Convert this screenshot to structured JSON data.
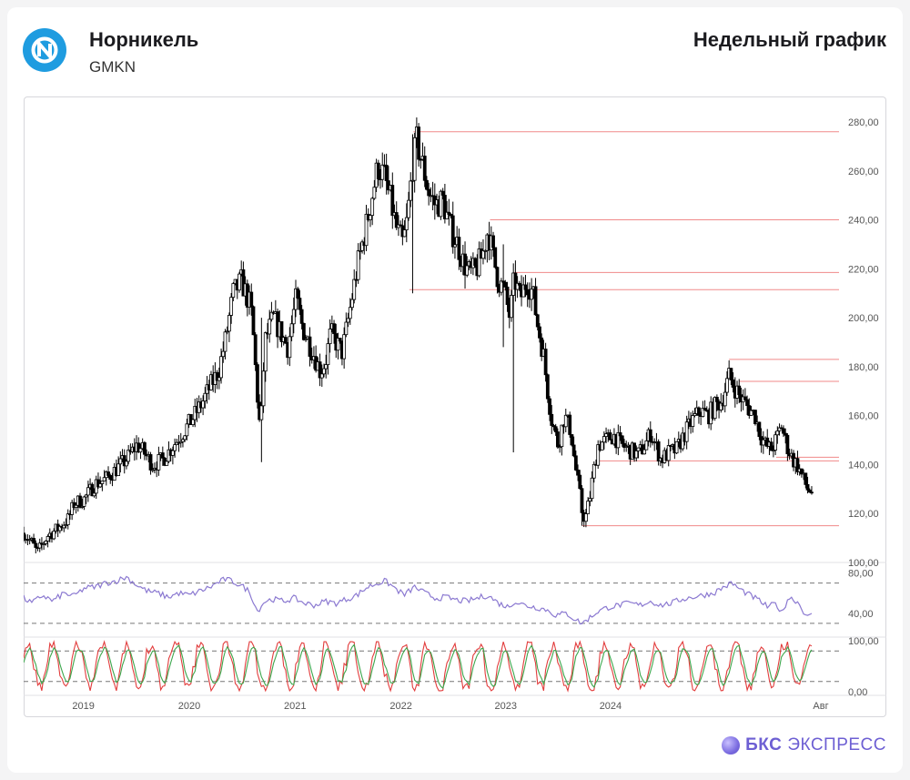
{
  "header": {
    "company": "Норникель",
    "ticker": "GMKN",
    "period": "Недельный график",
    "logo_icon": "nornickel-logo-icon",
    "logo_color": "#1f9ce0"
  },
  "brand": {
    "name_bold": "БКС",
    "name_rest": "ЭКСПРЕСС",
    "color": "#6d5fd3"
  },
  "chart_data": [
    {
      "type": "candlestick",
      "x_labels": [
        "2019",
        "2020",
        "2021",
        "2022",
        "2023",
        "2024",
        "Авг"
      ],
      "ylim": [
        100,
        280
      ],
      "y_ticks": [
        "100,00",
        "120,00",
        "140,00",
        "160,00",
        "180,00",
        "200,00",
        "220,00",
        "240,00",
        "260,00",
        "280,00"
      ],
      "anchors": [
        [
          2018.62,
          112
        ],
        [
          2018.7,
          108
        ],
        [
          2018.75,
          104
        ],
        [
          2018.85,
          111
        ],
        [
          2018.95,
          114
        ],
        [
          2019.05,
          118
        ],
        [
          2019.1,
          124
        ],
        [
          2019.2,
          126
        ],
        [
          2019.3,
          132
        ],
        [
          2019.4,
          134
        ],
        [
          2019.5,
          138
        ],
        [
          2019.6,
          142
        ],
        [
          2019.7,
          148
        ],
        [
          2019.75,
          146
        ],
        [
          2019.85,
          140
        ],
        [
          2019.95,
          142
        ],
        [
          2020.05,
          148
        ],
        [
          2020.12,
          152
        ],
        [
          2020.22,
          158
        ],
        [
          2020.32,
          165
        ],
        [
          2020.4,
          172
        ],
        [
          2020.48,
          178
        ],
        [
          2020.55,
          192
        ],
        [
          2020.62,
          210
        ],
        [
          2020.7,
          215
        ],
        [
          2020.78,
          205
        ],
        [
          2020.8,
          200
        ],
        [
          2020.85,
          168
        ],
        [
          2020.88,
          152
        ],
        [
          2020.92,
          190
        ],
        [
          2021.0,
          200
        ],
        [
          2021.06,
          195
        ],
        [
          2021.14,
          188
        ],
        [
          2021.22,
          208
        ],
        [
          2021.28,
          196
        ],
        [
          2021.34,
          190
        ],
        [
          2021.4,
          184
        ],
        [
          2021.45,
          178
        ],
        [
          2021.5,
          182
        ],
        [
          2021.55,
          194
        ],
        [
          2021.6,
          190
        ],
        [
          2021.66,
          186
        ],
        [
          2021.72,
          200
        ],
        [
          2021.8,
          220
        ],
        [
          2021.9,
          240
        ],
        [
          2022.0,
          262
        ],
        [
          2022.06,
          258
        ],
        [
          2022.12,
          248
        ],
        [
          2022.18,
          236
        ],
        [
          2022.24,
          230
        ],
        [
          2022.28,
          240
        ],
        [
          2022.33,
          262
        ],
        [
          2022.37,
          272
        ],
        [
          2022.43,
          262
        ],
        [
          2022.48,
          252
        ],
        [
          2022.55,
          246
        ],
        [
          2022.62,
          248
        ],
        [
          2022.68,
          238
        ],
        [
          2022.76,
          230
        ],
        [
          2022.82,
          222
        ],
        [
          2022.88,
          218
        ],
        [
          2022.94,
          220
        ],
        [
          2023.0,
          226
        ],
        [
          2023.05,
          236
        ],
        [
          2023.1,
          225
        ],
        [
          2023.15,
          215
        ],
        [
          2023.2,
          212
        ],
        [
          2023.26,
          200
        ],
        [
          2023.3,
          216
        ],
        [
          2023.36,
          208
        ],
        [
          2023.42,
          215
        ],
        [
          2023.48,
          210
        ],
        [
          2023.52,
          198
        ],
        [
          2023.58,
          185
        ],
        [
          2023.62,
          170
        ],
        [
          2023.66,
          158
        ],
        [
          2023.72,
          148
        ],
        [
          2023.78,
          160
        ],
        [
          2023.84,
          154
        ],
        [
          2023.88,
          140
        ],
        [
          2023.92,
          130
        ],
        [
          2023.95,
          120
        ],
        [
          2023.98,
          118
        ],
        [
          2024.02,
          126
        ],
        [
          2024.05,
          135
        ],
        [
          2024.1,
          148
        ],
        [
          2024.18,
          150
        ],
        [
          2024.25,
          152
        ],
        [
          2024.32,
          148
        ],
        [
          2024.4,
          146
        ],
        [
          2024.48,
          144
        ],
        [
          2024.55,
          148
        ],
        [
          2024.6,
          153
        ],
        [
          2024.65,
          148
        ],
        [
          2024.7,
          142
        ],
        [
          2024.78,
          145
        ],
        [
          2024.85,
          146
        ],
        [
          2024.92,
          152
        ],
        [
          2025.0,
          158
        ],
        [
          2025.08,
          162
        ],
        [
          2025.15,
          160
        ],
        [
          2025.22,
          164
        ],
        [
          2025.28,
          166
        ],
        [
          2025.35,
          176
        ],
        [
          2025.4,
          172
        ],
        [
          2025.45,
          168
        ],
        [
          2025.52,
          164
        ],
        [
          2025.6,
          160
        ],
        [
          2025.65,
          152
        ],
        [
          2025.7,
          148
        ],
        [
          2025.75,
          146
        ],
        [
          2025.8,
          150
        ],
        [
          2025.85,
          156
        ],
        [
          2025.9,
          148
        ],
        [
          2025.96,
          142
        ],
        [
          2026.0,
          140
        ],
        [
          2026.05,
          135
        ],
        [
          2026.1,
          130
        ],
        [
          2026.14,
          129
        ]
      ],
      "spikes": [
        [
          2020.88,
          141,
          200
        ],
        [
          2022.33,
          210,
          275
        ],
        [
          2023.2,
          188,
          230
        ],
        [
          2023.3,
          145,
          205
        ],
        [
          2023.95,
          115,
          128
        ]
      ],
      "hlines": [
        {
          "y": 276,
          "from": 2022.34
        },
        {
          "y": 240,
          "from": 2023.07
        },
        {
          "y": 218.5,
          "from": 2023.3
        },
        {
          "y": 211.5,
          "from": 2022.3
        },
        {
          "y": 183,
          "from": 2025.35
        },
        {
          "y": 174,
          "from": 2025.45
        },
        {
          "y": 143,
          "from": 2025.8
        },
        {
          "y": 141.5,
          "from": 2024.1
        },
        {
          "y": 115,
          "from": 2023.95
        }
      ],
      "hline_color": "#f08a8a"
    },
    {
      "type": "line",
      "name": "",
      "ylim": [
        20,
        85
      ],
      "y_ticks": [
        "40,00",
        "80,00"
      ],
      "dashed_levels": [
        30,
        70
      ],
      "color": "#8b79d1",
      "anchors": [
        [
          2018.62,
          55
        ],
        [
          2018.7,
          50
        ],
        [
          2018.8,
          58
        ],
        [
          2018.9,
          52
        ],
        [
          2019.0,
          60
        ],
        [
          2019.1,
          57
        ],
        [
          2019.2,
          65
        ],
        [
          2019.3,
          66
        ],
        [
          2019.4,
          70
        ],
        [
          2019.5,
          72
        ],
        [
          2019.6,
          76
        ],
        [
          2019.7,
          68
        ],
        [
          2019.8,
          62
        ],
        [
          2019.9,
          60
        ],
        [
          2020.0,
          56
        ],
        [
          2020.1,
          60
        ],
        [
          2020.2,
          58
        ],
        [
          2020.3,
          62
        ],
        [
          2020.4,
          66
        ],
        [
          2020.5,
          72
        ],
        [
          2020.55,
          74
        ],
        [
          2020.65,
          70
        ],
        [
          2020.75,
          64
        ],
        [
          2020.8,
          56
        ],
        [
          2020.85,
          42
        ],
        [
          2020.92,
          52
        ],
        [
          2021.0,
          54
        ],
        [
          2021.1,
          52
        ],
        [
          2021.2,
          55
        ],
        [
          2021.3,
          50
        ],
        [
          2021.4,
          48
        ],
        [
          2021.5,
          52
        ],
        [
          2021.6,
          50
        ],
        [
          2021.7,
          54
        ],
        [
          2021.8,
          58
        ],
        [
          2021.9,
          66
        ],
        [
          2022.0,
          70
        ],
        [
          2022.07,
          72
        ],
        [
          2022.15,
          66
        ],
        [
          2022.25,
          58
        ],
        [
          2022.35,
          66
        ],
        [
          2022.45,
          60
        ],
        [
          2022.55,
          55
        ],
        [
          2022.65,
          56
        ],
        [
          2022.75,
          53
        ],
        [
          2022.85,
          52
        ],
        [
          2022.95,
          55
        ],
        [
          2023.05,
          58
        ],
        [
          2023.15,
          50
        ],
        [
          2023.25,
          46
        ],
        [
          2023.3,
          52
        ],
        [
          2023.4,
          48
        ],
        [
          2023.5,
          46
        ],
        [
          2023.6,
          44
        ],
        [
          2023.7,
          38
        ],
        [
          2023.8,
          40
        ],
        [
          2023.88,
          34
        ],
        [
          2023.95,
          30
        ],
        [
          2024.0,
          34
        ],
        [
          2024.1,
          42
        ],
        [
          2024.2,
          46
        ],
        [
          2024.3,
          48
        ],
        [
          2024.4,
          50
        ],
        [
          2024.5,
          48
        ],
        [
          2024.6,
          52
        ],
        [
          2024.7,
          48
        ],
        [
          2024.8,
          50
        ],
        [
          2024.9,
          54
        ],
        [
          2025.0,
          56
        ],
        [
          2025.1,
          58
        ],
        [
          2025.2,
          60
        ],
        [
          2025.3,
          66
        ],
        [
          2025.38,
          70
        ],
        [
          2025.45,
          64
        ],
        [
          2025.55,
          58
        ],
        [
          2025.65,
          52
        ],
        [
          2025.72,
          46
        ],
        [
          2025.8,
          50
        ],
        [
          2025.85,
          40
        ],
        [
          2025.92,
          56
        ],
        [
          2026.0,
          52
        ],
        [
          2026.05,
          44
        ],
        [
          2026.1,
          36
        ],
        [
          2026.14,
          38
        ]
      ]
    },
    {
      "type": "line",
      "name": "",
      "ylim": [
        0,
        100
      ],
      "y_ticks": [
        "0,00",
        "100,00"
      ],
      "dashed_levels": [
        20,
        80
      ],
      "series": [
        {
          "color": "#e23c3c"
        },
        {
          "color": "#3ca64c"
        }
      ]
    }
  ]
}
